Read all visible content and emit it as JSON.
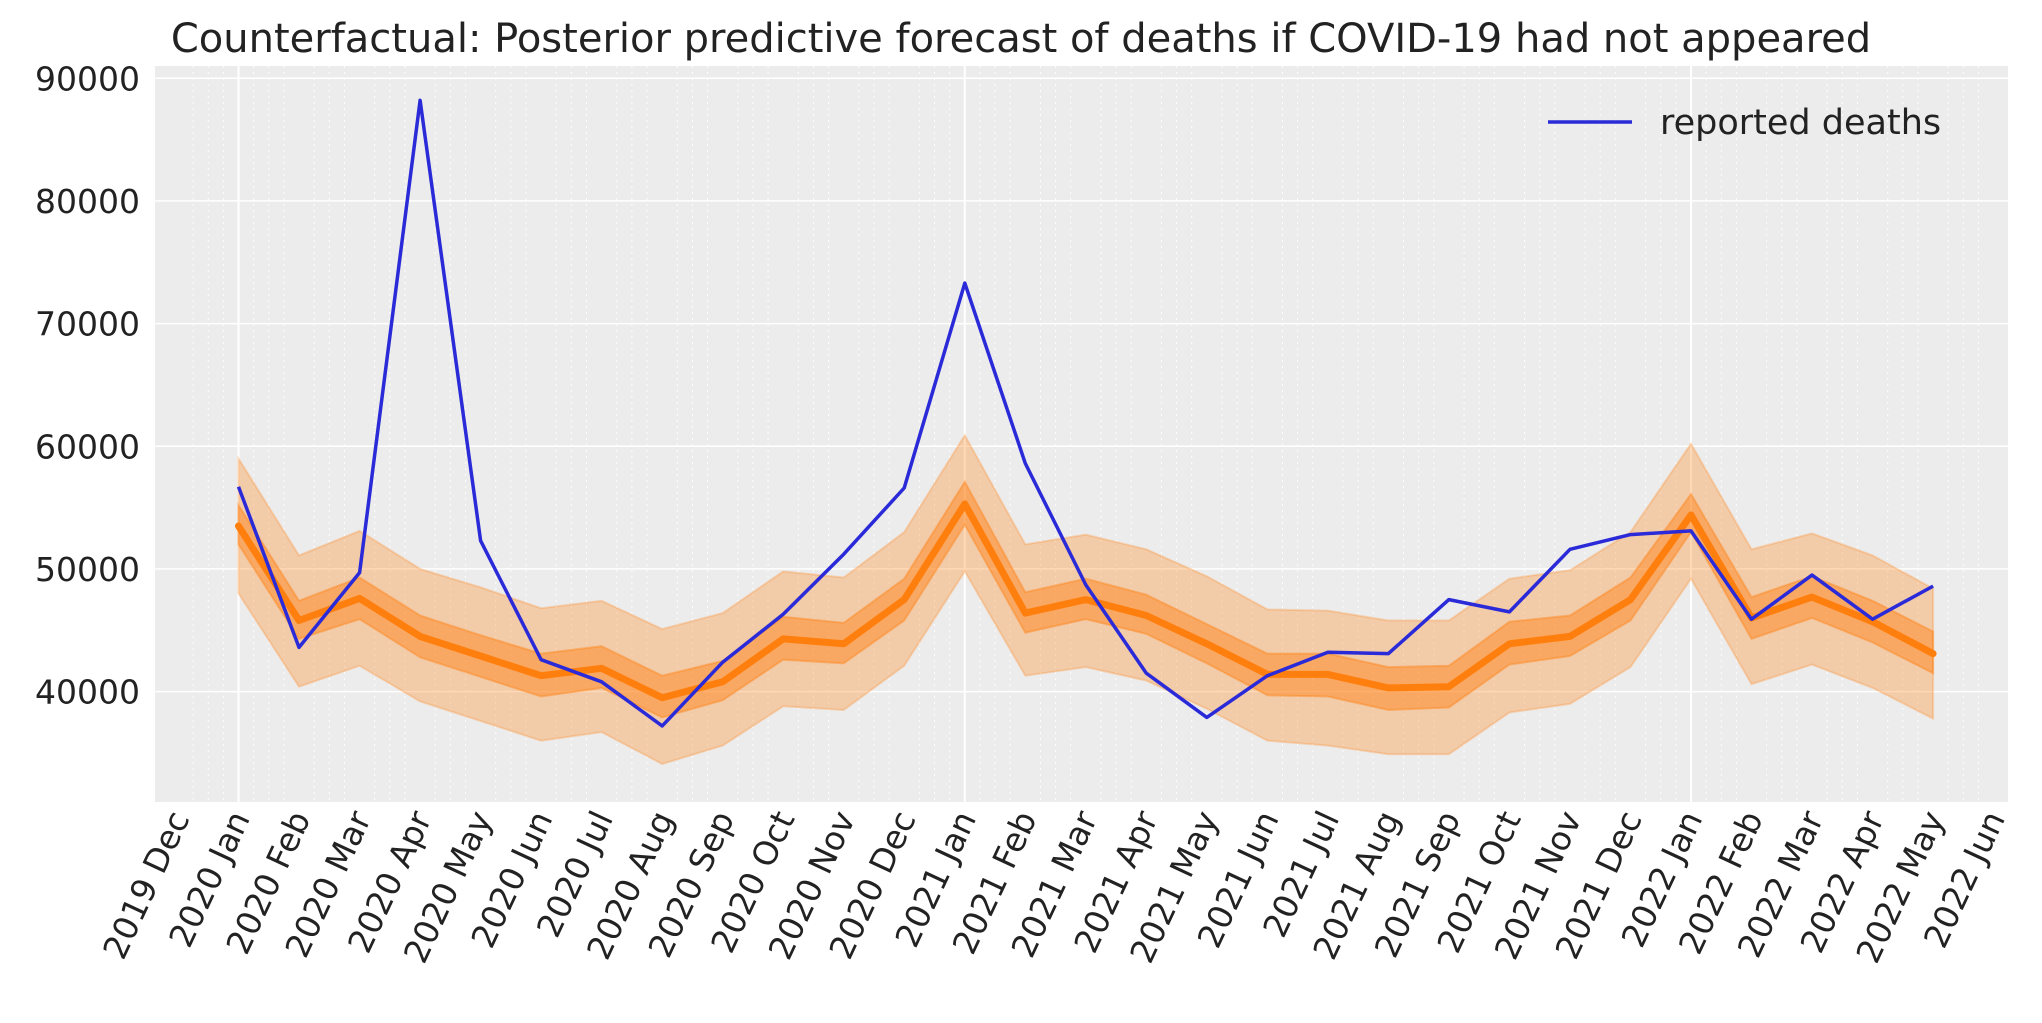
{
  "chart_data": {
    "type": "line",
    "title": "Counterfactual: Posterior predictive forecast of deaths if COVID-19 had not appeared",
    "xlabel": "",
    "ylabel": "",
    "x_tick_labels": [
      "2019 Dec",
      "2020 Jan",
      "2020 Feb",
      "2020 Mar",
      "2020 Apr",
      "2020 May",
      "2020 Jun",
      "2020 Jul",
      "2020 Aug",
      "2020 Sep",
      "2020 Oct",
      "2020 Nov",
      "2020 Dec",
      "2021 Jan",
      "2021 Feb",
      "2021 Mar",
      "2021 Apr",
      "2021 May",
      "2021 Jun",
      "2021 Jul",
      "2021 Aug",
      "2021 Sep",
      "2021 Oct",
      "2021 Nov",
      "2021 Dec",
      "2022 Jan",
      "2022 Feb",
      "2022 Mar",
      "2022 Apr",
      "2022 May",
      "2022 Jun"
    ],
    "x": [
      "2020 Jan",
      "2020 Feb",
      "2020 Mar",
      "2020 Apr",
      "2020 May",
      "2020 Jun",
      "2020 Jul",
      "2020 Aug",
      "2020 Sep",
      "2020 Oct",
      "2020 Nov",
      "2020 Dec",
      "2021 Jan",
      "2021 Feb",
      "2021 Mar",
      "2021 Apr",
      "2021 May",
      "2021 Jun",
      "2021 Jul",
      "2021 Aug",
      "2021 Sep",
      "2021 Oct",
      "2021 Nov",
      "2021 Dec",
      "2022 Jan",
      "2022 Feb",
      "2022 Mar",
      "2022 Apr",
      "2022 May"
    ],
    "y_ticks": [
      40000,
      50000,
      60000,
      70000,
      80000,
      90000
    ],
    "ylim": [
      31000,
      91000
    ],
    "grid": true,
    "legend_position": "top-right",
    "series": [
      {
        "name": "reported deaths",
        "color": "#2a2ad8",
        "values": [
          56700,
          43600,
          49700,
          88200,
          52300,
          42600,
          40800,
          37200,
          42400,
          46300,
          51200,
          56600,
          73300,
          58600,
          48700,
          41500,
          37900,
          41300,
          43200,
          43100,
          47500,
          46500,
          51600,
          52800,
          53100,
          45900,
          49500,
          45900,
          48600
        ]
      }
    ],
    "forecast": {
      "color": "#ff7f0e",
      "median": [
        53500,
        45800,
        47600,
        44500,
        42900,
        41300,
        41900,
        39500,
        40800,
        44300,
        43900,
        47500,
        55300,
        46400,
        47500,
        46200,
        43900,
        41400,
        41400,
        40300,
        40400,
        43900,
        44500,
        47500,
        54400,
        46000,
        47700,
        45700,
        43100
      ],
      "band_inner_low": [
        52000,
        44300,
        45900,
        42800,
        41200,
        39600,
        40300,
        37900,
        39300,
        42600,
        42300,
        45800,
        53600,
        44800,
        45900,
        44700,
        42300,
        39700,
        39600,
        38500,
        38700,
        42200,
        42900,
        45800,
        53000,
        44300,
        46000,
        44000,
        41500
      ],
      "band_inner_high": [
        55200,
        47400,
        49300,
        46200,
        44600,
        43100,
        43700,
        41300,
        42500,
        46100,
        45600,
        49200,
        57100,
        48100,
        49200,
        47900,
        45500,
        43100,
        43100,
        42000,
        42100,
        45700,
        46200,
        49300,
        56100,
        47700,
        49400,
        47400,
        44900
      ],
      "band_outer_low": [
        48000,
        40400,
        42100,
        39200,
        37600,
        36000,
        36700,
        34100,
        35600,
        38800,
        38500,
        42100,
        49800,
        41300,
        42000,
        40900,
        38600,
        36000,
        35600,
        34900,
        34900,
        38300,
        39000,
        42000,
        49200,
        40600,
        42200,
        40300,
        37800
      ],
      "band_outer_high": [
        59000,
        51100,
        53100,
        50000,
        48500,
        46800,
        47400,
        45100,
        46400,
        49800,
        49300,
        53000,
        60900,
        52000,
        52800,
        51600,
        49400,
        46700,
        46600,
        45800,
        45800,
        49200,
        49900,
        53000,
        60200,
        51600,
        52900,
        51100,
        48400
      ]
    }
  }
}
